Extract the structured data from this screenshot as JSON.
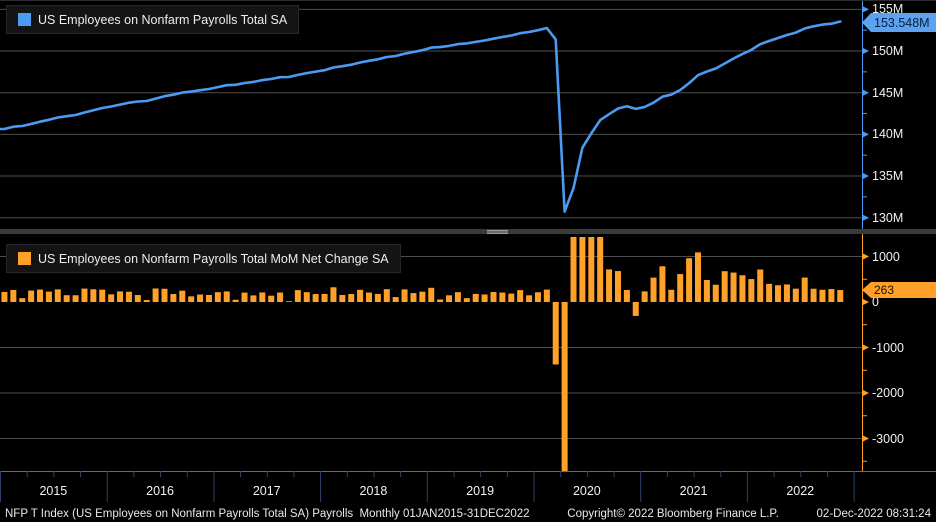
{
  "top_panel": {
    "legend": "US Employees on Nonfarm Payrolls Total SA",
    "last_value_label": "153.548M",
    "axis_ticks": [
      {
        "label": "155M",
        "value": 155
      },
      {
        "label": "150M",
        "value": 150
      },
      {
        "label": "145M",
        "value": 145
      },
      {
        "label": "140M",
        "value": 140
      },
      {
        "label": "135M",
        "value": 135
      },
      {
        "label": "130M",
        "value": 130
      }
    ]
  },
  "bottom_panel": {
    "legend": "US Employees on Nonfarm Payrolls Total MoM Net Change SA",
    "last_value_label": "263",
    "axis_ticks": [
      {
        "label": "1000",
        "value": 1000
      },
      {
        "label": "0",
        "value": 0
      },
      {
        "label": "-1000",
        "value": -1000
      },
      {
        "label": "-2000",
        "value": -2000
      },
      {
        "label": "-3000",
        "value": -3000
      }
    ]
  },
  "x_axis": {
    "years": [
      "2015",
      "2016",
      "2017",
      "2018",
      "2019",
      "2020",
      "2021",
      "2022"
    ]
  },
  "status_bar": {
    "left": "NFP T Index (US Employees on Nonfarm Payrolls Total SA) Payrolls  Monthly 01JAN2015-31DEC2022",
    "copyright": "Copyright© 2022 Bloomberg Finance L.P.",
    "timestamp": "02-Dec-2022 08:31:24"
  },
  "colors": {
    "blue": "#4C9BF2",
    "badge_blue": "#5CA2F0",
    "orange": "#FFA128",
    "grid": "#4E4E4E",
    "x_separator": "#2D4468",
    "x_axis_line": "#3E73B8",
    "text": "#F0F0F0"
  },
  "chart_data": [
    {
      "type": "line",
      "title": "US Employees on Nonfarm Payrolls Total SA",
      "unit": "millions",
      "frequency": "monthly",
      "x_start": "2015-01",
      "x_end": "2022-11",
      "ylim": [
        129,
        155.6
      ],
      "grid": true,
      "legend_position": "top-left",
      "last_value": 153.548,
      "values": [
        140.65,
        140.92,
        141.0,
        141.25,
        141.52,
        141.75,
        142.03,
        142.18,
        142.33,
        142.62,
        142.9,
        143.17,
        143.34,
        143.57,
        143.8,
        143.95,
        144.0,
        144.29,
        144.58,
        144.76,
        145.01,
        145.13,
        145.3,
        145.45,
        145.67,
        145.9,
        145.95,
        146.16,
        146.3,
        146.51,
        146.65,
        146.86,
        146.88,
        147.14,
        147.35,
        147.53,
        147.7,
        148.03,
        148.18,
        148.36,
        148.63,
        148.83,
        149.01,
        149.29,
        149.4,
        149.68,
        149.88,
        150.1,
        150.41,
        150.47,
        150.62,
        150.83,
        150.92,
        151.1,
        151.26,
        151.48,
        151.69,
        151.87,
        152.14,
        152.28,
        152.5,
        152.77,
        151.4,
        130.72,
        133.55,
        138.4,
        140.12,
        141.71,
        142.42,
        143.1,
        143.37,
        143.06,
        143.29,
        143.8,
        144.52,
        144.77,
        145.32,
        146.15,
        147.1,
        147.55,
        147.9,
        148.5,
        149.1,
        149.65,
        150.14,
        150.82,
        151.2,
        151.56,
        151.93,
        152.21,
        152.7,
        152.97,
        153.17,
        153.285,
        153.548
      ]
    },
    {
      "type": "bar",
      "title": "US Employees on Nonfarm Payrolls Total MoM Net Change SA",
      "unit": "thousands",
      "frequency": "monthly",
      "x_start": "2015-01",
      "x_end": "2022-11",
      "ylim": [
        -3650,
        1430
      ],
      "clipped_to_range": true,
      "grid": true,
      "legend_position": "top-left",
      "last_value": 263,
      "values": [
        221,
        265,
        84,
        251,
        273,
        228,
        277,
        150,
        149,
        295,
        280,
        271,
        168,
        233,
        225,
        153,
        43,
        297,
        291,
        176,
        249,
        124,
        164,
        155,
        216,
        232,
        50,
        207,
        145,
        210,
        139,
        208,
        18,
        261,
        216,
        175,
        176,
        324,
        155,
        175,
        268,
        208,
        178,
        282,
        108,
        277,
        196,
        227,
        312,
        56,
        147,
        216,
        85,
        178,
        166,
        219,
        208,
        185,
        261,
        147,
        214,
        273,
        -1373,
        -20679,
        2833,
        4846,
        1726,
        1583,
        716,
        680,
        264,
        -306,
        233,
        536,
        785,
        269,
        614,
        962,
        1091,
        483,
        379,
        677,
        647,
        588,
        504,
        714,
        398,
        368,
        386,
        293,
        537,
        292,
        269,
        284,
        263
      ]
    }
  ]
}
